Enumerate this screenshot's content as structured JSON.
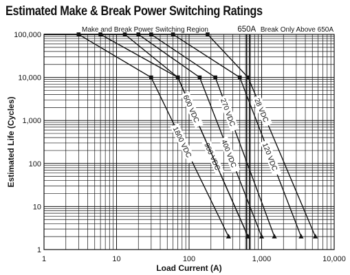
{
  "chart_data": {
    "type": "line",
    "title": "Estimated Make & Break Power Switching Ratings",
    "xlabel": "Load Current (A)",
    "ylabel": "Estimated Life (Cycles)",
    "x_scale": "log",
    "y_scale": "log",
    "xlim": [
      1,
      10000
    ],
    "ylim": [
      1,
      100000
    ],
    "x_ticks": [
      "1",
      "10",
      "100",
      "1,000",
      "10,000"
    ],
    "y_ticks": [
      "1",
      "10",
      "100",
      "1,000",
      "10,000",
      "100,000"
    ],
    "grid": true,
    "annotations": {
      "region": "Make and Break Power Switching Region",
      "threshold_value": "650A",
      "threshold_x": 650,
      "threshold_note": "Break Only Above 650A"
    },
    "series": [
      {
        "name": "1800 VDC",
        "x": [
          1,
          3,
          30,
          350
        ],
        "y": [
          100000,
          100000,
          10000,
          2
        ]
      },
      {
        "name": "900 VDC",
        "x": [
          1,
          6,
          70,
          650
        ],
        "y": [
          100000,
          100000,
          10000,
          2
        ]
      },
      {
        "name": "600 VDC",
        "x": [
          1,
          13,
          70,
          650
        ],
        "y": [
          100000,
          100000,
          10000,
          2
        ]
      },
      {
        "name": "400 VDC",
        "x": [
          1,
          20,
          140,
          1000
        ],
        "y": [
          100000,
          100000,
          10000,
          2
        ]
      },
      {
        "name": "270 VDC",
        "x": [
          1,
          30,
          230,
          1500
        ],
        "y": [
          100000,
          100000,
          10000,
          2
        ]
      },
      {
        "name": "120 VDC",
        "x": [
          1,
          60,
          500,
          3500
        ],
        "y": [
          100000,
          100000,
          10000,
          2
        ]
      },
      {
        "name": "28 VDC",
        "x": [
          1,
          180,
          650,
          5500
        ],
        "y": [
          100000,
          100000,
          10000,
          2
        ]
      }
    ]
  }
}
